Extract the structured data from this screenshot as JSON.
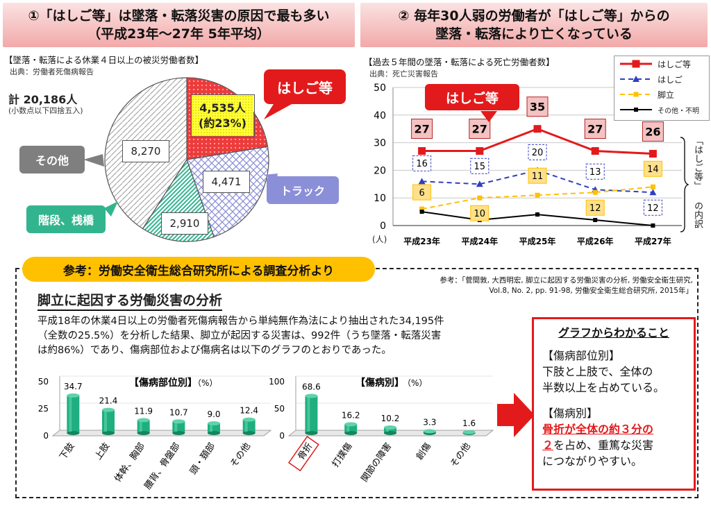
{
  "left_panel": {
    "heading_line1": "①「はしご等」は墜落・転落災害の原因で最も多い",
    "heading_line2": "（平成23年〜27年 5年平均）",
    "subtitle": "【墜落・転落による休業４日以上の被災労働者数】",
    "source": "出典：労働者死傷病報告",
    "total": "計 20,186人",
    "total_note": "(小数点以下四捨五入)",
    "ladder_value": "4,535人",
    "ladder_pct": "(約23%)",
    "truck_value": "4,471",
    "stairs_value": "2,910",
    "other_value": "8,270",
    "callouts": {
      "ladder": "はしご等",
      "truck": "トラック",
      "stairs": "階段、桟橋",
      "other": "その他"
    }
  },
  "right_panel": {
    "heading_line1": "② 毎年30人弱の労働者が「はしご等」からの",
    "heading_line2": "墜落・転落により亡くなっている",
    "subtitle": "【過去５年間の墜落・転落による死亡労働者数】",
    "source": "出典：死亡災害報告",
    "ladder_callout": "はしご等",
    "unit": "(人)",
    "side_label_top": "「はしご等」",
    "side_label_bottom": "の内訳"
  },
  "reference": {
    "badge": "参考：労働安全衛生総合研究所による調査分析より",
    "citation_line1": "参考：「菅間敦, 大西明宏, 脚立に起因する労働災害の分析, 労働安全衛生研究,",
    "citation_line2": "Vol.8, No. 2, pp. 91-98, 労働安全衛生総合研究所, 2015年」",
    "section_title": "脚立に起因する労働災害の分析",
    "body_line1": "平成18年の休業4日以上の労働者死傷病報告から単純無作為法により抽出された34,195件",
    "body_line2": "（全数の25.5%）を分析した結果、脚立が起因する災害は、992件（うち墜落・転落災害",
    "body_line3": "は約86%）であり、傷病部位および傷病名は以下のグラフのとおりであった。",
    "findings_title": "グラフからわかること",
    "findings_h1": "【傷病部位別】",
    "findings_t1a": "下肢と上肢で、全体の",
    "findings_t1b": "半数以上を占めている。",
    "findings_h2": "【傷病別】",
    "findings_t2a": "骨折が全体の約３分の",
    "findings_t2b": "２",
    "findings_t2c": "を占め、重篤な災害",
    "findings_t2d": "につながりやすい。"
  },
  "colors": {
    "accent_red": "#e31a1c",
    "ladder_red": "#e31a1c",
    "ladder_blue": "#2e3fbf",
    "stepladder_yellow": "#ffc000",
    "other_black": "#000000",
    "bar_green": "#1fae7f",
    "truck_purple": "#8b8fd8",
    "stairs_green": "#32b58f",
    "other_grey": "#7f7f7f"
  },
  "chart_data": [
    {
      "type": "pie",
      "title": "【墜落・転落による休業４日以上の被災労働者数】",
      "labels": [
        "はしご等",
        "トラック",
        "階段、桟橋",
        "その他"
      ],
      "values": [
        4535,
        4471,
        2910,
        8270
      ],
      "total": 20186
    },
    {
      "type": "line",
      "title": "【過去５年間の墜落・転落による死亡労働者数】",
      "categories": [
        "平成23年",
        "平成24年",
        "平成25年",
        "平成26年",
        "平成27年"
      ],
      "ylabel": "(人)",
      "ylim": [
        0,
        50
      ],
      "yticks": [
        0,
        10,
        20,
        30,
        40,
        50
      ],
      "grid": true,
      "legend_position": "top-right",
      "series": [
        {
          "name": "はしご等",
          "values": [
            27,
            27,
            35,
            27,
            26
          ]
        },
        {
          "name": "はしご",
          "values": [
            16,
            15,
            20,
            13,
            12
          ]
        },
        {
          "name": "脚立",
          "values": [
            6,
            10,
            11,
            12,
            14
          ]
        },
        {
          "name": "その他・不明",
          "values": [
            5,
            2,
            4,
            2,
            0
          ]
        }
      ]
    },
    {
      "type": "bar",
      "title": "【傷病部位別】",
      "unit": "（%）",
      "categories": [
        "下肢",
        "上肢",
        "体幹、胸部",
        "腰背、骨盤部",
        "頭・頚部",
        "その他"
      ],
      "values": [
        34.7,
        21.4,
        11.9,
        10.7,
        9.0,
        12.4
      ],
      "ylim": [
        0,
        50
      ],
      "yticks": [
        0,
        25,
        50
      ]
    },
    {
      "type": "bar",
      "title": "【傷病別】",
      "unit": "（%）",
      "categories": [
        "骨折",
        "打撲傷",
        "関節の障害",
        "創傷",
        "その他"
      ],
      "values": [
        68.6,
        16.2,
        10.2,
        3.3,
        1.6
      ],
      "ylim": [
        0,
        100
      ],
      "yticks": [
        0,
        50,
        100
      ]
    }
  ]
}
